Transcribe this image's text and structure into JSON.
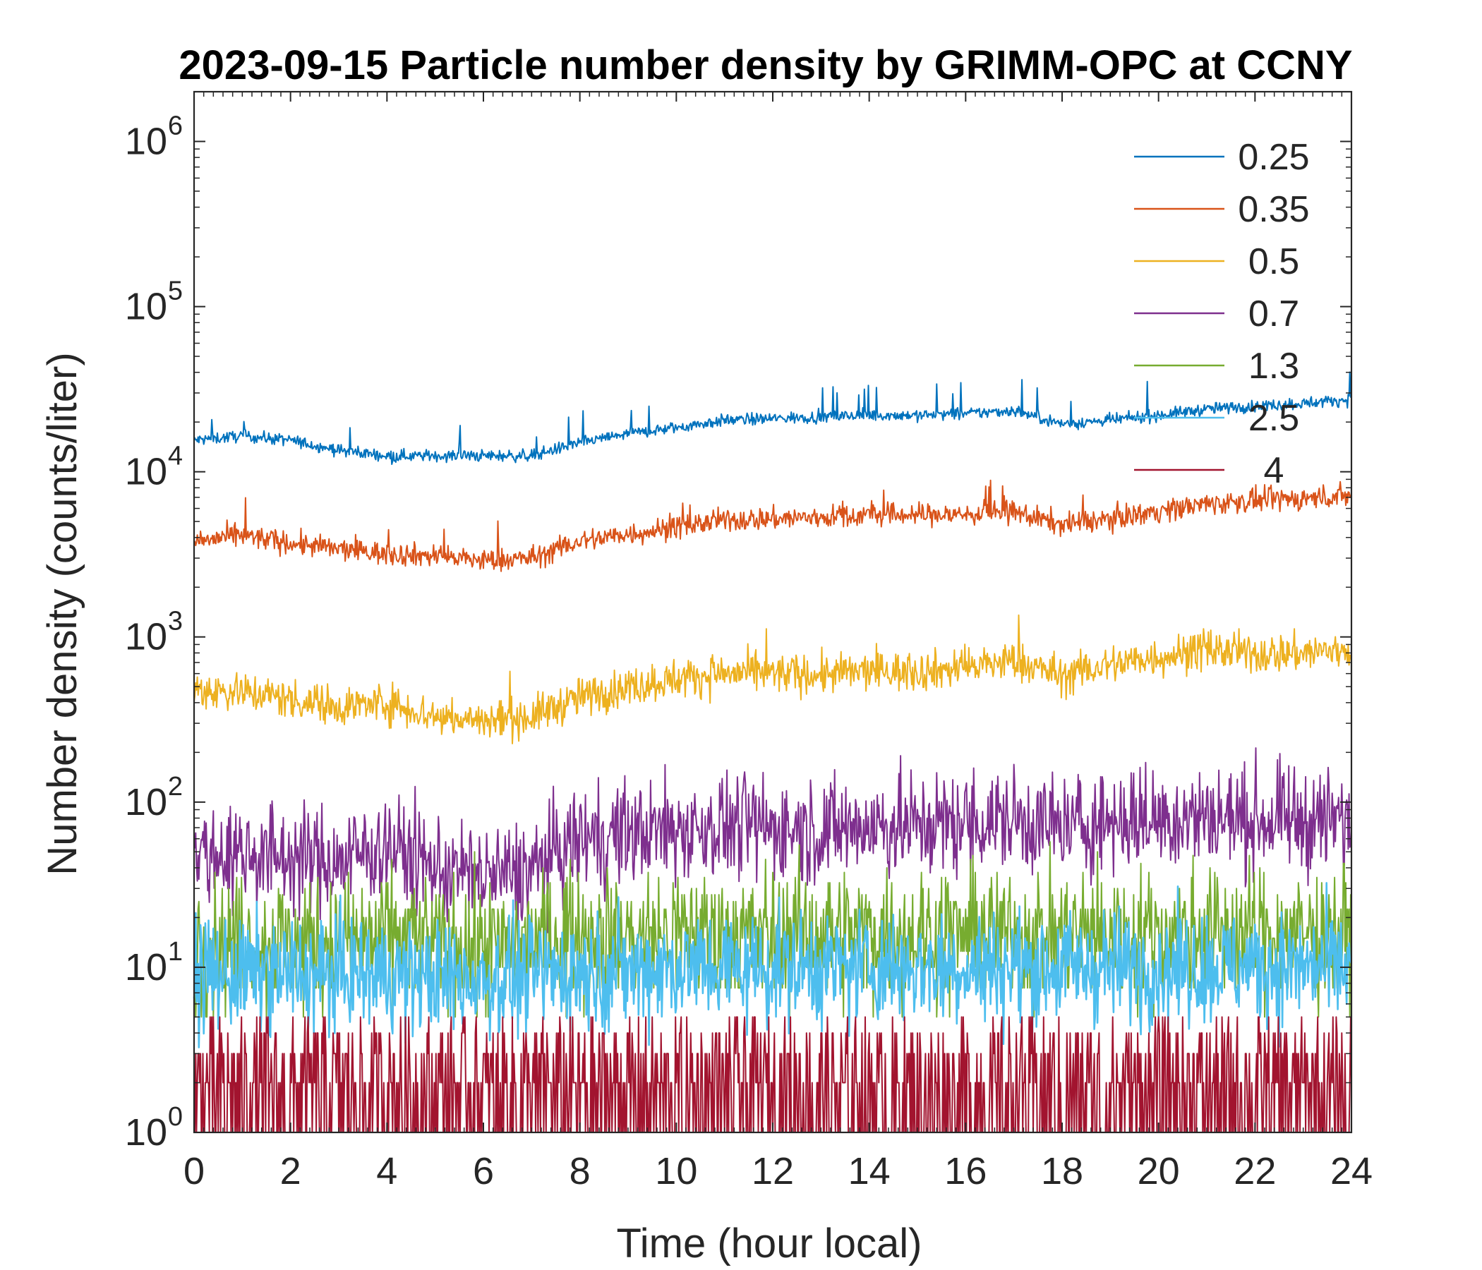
{
  "chart_data": {
    "type": "line",
    "title": "2023-09-15 Particle number density by GRIMM-OPC at CCNY",
    "xlabel": "Time (hour local)",
    "ylabel": "Number density (counts/liter)",
    "xlim": [
      0,
      24
    ],
    "xticks": [
      0,
      2,
      4,
      6,
      8,
      10,
      12,
      14,
      16,
      18,
      20,
      22,
      24
    ],
    "xtick_labels": [
      "0",
      "2",
      "4",
      "6",
      "8",
      "10",
      "12",
      "14",
      "16",
      "18",
      "20",
      "22",
      "24"
    ],
    "yscale": "log",
    "ylim": [
      1,
      2000000
    ],
    "yticks": [
      1,
      10,
      100,
      1000,
      10000,
      100000,
      1000000
    ],
    "ytick_labels": [
      {
        "base": "10",
        "exp": "0"
      },
      {
        "base": "10",
        "exp": "1"
      },
      {
        "base": "10",
        "exp": "2"
      },
      {
        "base": "10",
        "exp": "3"
      },
      {
        "base": "10",
        "exp": "4"
      },
      {
        "base": "10",
        "exp": "5"
      },
      {
        "base": "10",
        "exp": "6"
      }
    ],
    "legend_position": "top-right",
    "grid": false,
    "x": [
      0,
      1,
      2,
      3,
      4,
      5,
      6,
      7,
      8,
      9,
      10,
      11,
      12,
      13,
      14,
      15,
      16,
      17,
      18,
      19,
      20,
      21,
      22,
      23,
      24
    ],
    "series": [
      {
        "name": "0.25",
        "color": "#0072BD",
        "values": [
          15500,
          16500,
          15500,
          13500,
          12500,
          12500,
          12500,
          12500,
          15000,
          17000,
          18500,
          20500,
          21000,
          21500,
          22000,
          22000,
          22500,
          23500,
          19500,
          20500,
          22000,
          24000,
          25000,
          26000,
          27500
        ]
      },
      {
        "name": "0.35",
        "color": "#D95319",
        "values": [
          3800,
          4100,
          3700,
          3400,
          3200,
          3100,
          2900,
          3000,
          3800,
          4200,
          4600,
          5100,
          5200,
          5300,
          5500,
          5500,
          5500,
          5700,
          4800,
          5200,
          5800,
          6400,
          6700,
          6900,
          7200
        ]
      },
      {
        "name": "0.5",
        "color": "#EDB120",
        "values": [
          480,
          470,
          420,
          380,
          400,
          330,
          310,
          330,
          430,
          500,
          560,
          600,
          600,
          590,
          620,
          620,
          650,
          720,
          580,
          680,
          760,
          830,
          790,
          800,
          840
        ]
      },
      {
        "name": "0.7",
        "color": "#7E2F8E",
        "values": [
          48,
          50,
          46,
          44,
          55,
          40,
          35,
          38,
          60,
          65,
          68,
          72,
          70,
          68,
          72,
          72,
          75,
          78,
          70,
          78,
          80,
          82,
          78,
          78,
          75
        ]
      },
      {
        "name": "1.3",
        "color": "#77AC30",
        "values": [
          14,
          14,
          14,
          14,
          15,
          14,
          13,
          14,
          16,
          15,
          16,
          16,
          16,
          16,
          16,
          16,
          16,
          16,
          16,
          16,
          16,
          16,
          16,
          16,
          16
        ]
      },
      {
        "name": "2.5",
        "color": "#4DBEEE",
        "values": [
          9,
          9,
          9,
          9,
          9,
          8.5,
          8.5,
          9,
          9.5,
          9.5,
          10,
          10,
          10,
          10,
          10,
          10,
          10,
          10,
          10,
          10,
          10,
          10,
          10,
          10,
          10
        ]
      },
      {
        "name": "4",
        "color": "#A2142F",
        "values": [
          1.6,
          1.6,
          1.6,
          1.5,
          1.6,
          1.5,
          1.5,
          1.5,
          1.7,
          1.7,
          1.7,
          1.8,
          1.8,
          1.7,
          1.7,
          1.7,
          1.8,
          1.8,
          1.7,
          1.8,
          1.8,
          1.8,
          1.8,
          1.7,
          1.7
        ]
      }
    ]
  }
}
